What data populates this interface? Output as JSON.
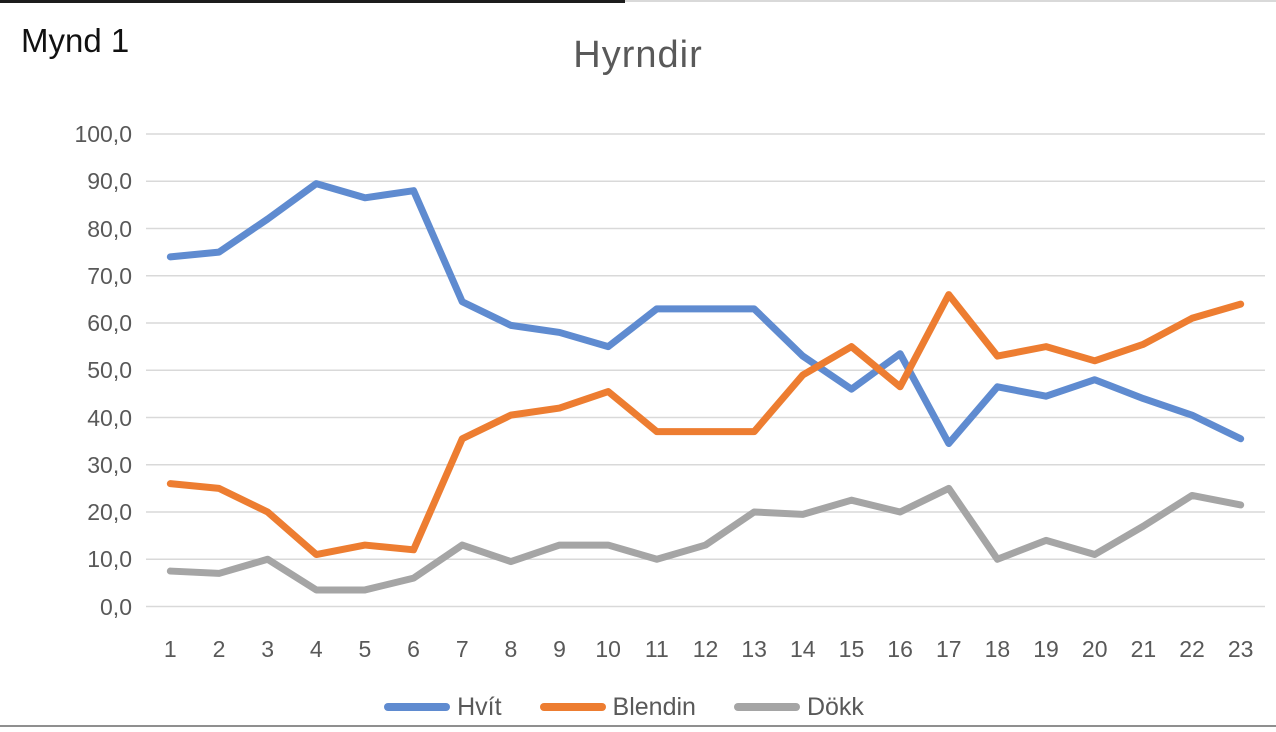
{
  "figure_label": "Mynd 1",
  "page": {
    "background": "#ffffff",
    "top_border_dark_color": "#1c1c1c",
    "top_border_light_color": "#d9d9d9",
    "bottom_border_color": "#8f8f8f"
  },
  "chart_data": {
    "type": "line",
    "title": "Hyrndir",
    "title_color": "#595959",
    "categories": [
      "1",
      "2",
      "3",
      "4",
      "5",
      "6",
      "7",
      "8",
      "9",
      "10",
      "11",
      "12",
      "13",
      "14",
      "15",
      "16",
      "17",
      "18",
      "19",
      "20",
      "21",
      "22",
      "23"
    ],
    "series": [
      {
        "name": "Hvít",
        "color": "#5f8bd0",
        "values": [
          74,
          75,
          82,
          89.5,
          86.5,
          88,
          64.5,
          59.5,
          58,
          55,
          63,
          63,
          63,
          53,
          46,
          53.5,
          34.5,
          46.5,
          44.5,
          48,
          44,
          40.5,
          35.5
        ]
      },
      {
        "name": "Blendin",
        "color": "#ed7d31",
        "values": [
          26,
          25,
          20,
          11,
          13,
          12,
          35.5,
          40.5,
          42,
          45.5,
          37,
          37,
          37,
          49,
          55,
          46.5,
          66,
          53,
          55,
          52,
          55.5,
          61,
          64
        ]
      },
      {
        "name": "Dökk",
        "color": "#a5a5a5",
        "values": [
          7.5,
          7,
          10,
          3.5,
          3.5,
          6,
          13,
          9.5,
          13,
          13,
          10,
          13,
          20,
          19.5,
          22.5,
          20,
          25,
          10,
          14,
          11,
          17,
          23.5,
          21.5
        ]
      }
    ],
    "y_axis": {
      "min": 0,
      "max": 100,
      "step": 10,
      "tick_labels": [
        "100,0",
        "90,0",
        "80,0",
        "70,0",
        "60,0",
        "50,0",
        "40,0",
        "30,0",
        "20,0",
        "10,0",
        "0,0"
      ],
      "label_color": "#595959"
    },
    "x_axis": {
      "label_color": "#595959"
    },
    "grid": true,
    "gridline_color": "#d9d9d9",
    "line_width": 7,
    "legend": {
      "position": "bottom",
      "label_color": "#595959"
    },
    "ylim": [
      0,
      100
    ]
  }
}
